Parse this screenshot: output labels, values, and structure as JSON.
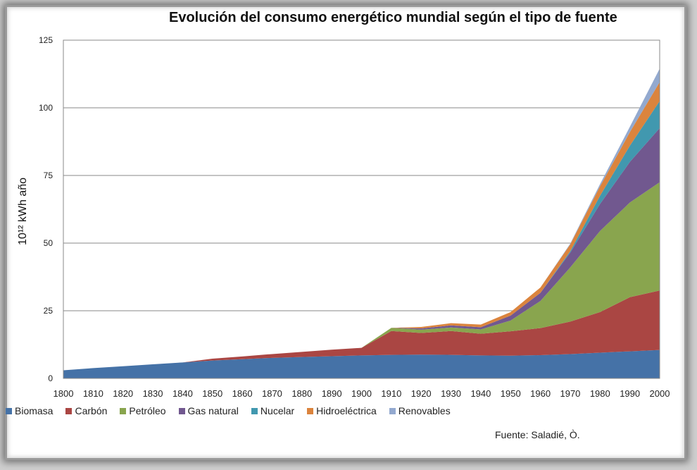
{
  "chart_data": {
    "type": "area",
    "stacked": true,
    "title": "Evolución del consumo energético mundial según el tipo de fuente",
    "ylabel": "10¹² kWh año",
    "xlabel": "",
    "ylim": [
      0,
      125
    ],
    "yticks": [
      "0",
      "25",
      "50",
      "75",
      "100",
      "125"
    ],
    "x": [
      1800,
      1810,
      1820,
      1830,
      1840,
      1850,
      1860,
      1870,
      1880,
      1890,
      1900,
      1910,
      1920,
      1930,
      1940,
      1950,
      1960,
      1970,
      1980,
      1990,
      2000
    ],
    "xticks": [
      "1800",
      "1810",
      "1820",
      "1830",
      "1840",
      "1850",
      "1860",
      "1870",
      "1880",
      "1890",
      "1900",
      "1910",
      "1920",
      "1930",
      "1940",
      "1950",
      "1960",
      "1970",
      "1980",
      "1990",
      "2000"
    ],
    "grid": "horizontal",
    "legend_position": "bottom",
    "series": [
      {
        "name": "Biomasa",
        "color": "#4572a7",
        "values": [
          3,
          3.8,
          4.5,
          5.2,
          5.9,
          6.6,
          7.1,
          7.6,
          7.9,
          8.2,
          8.5,
          8.7,
          8.8,
          8.7,
          8.5,
          8.4,
          8.6,
          9.0,
          9.5,
          10.0,
          10.5
        ]
      },
      {
        "name": "Carbón",
        "color": "#aa4643",
        "values": [
          0,
          0,
          0,
          0,
          0,
          0.7,
          1.0,
          1.4,
          1.9,
          2.4,
          2.8,
          8.8,
          8.0,
          8.8,
          8.0,
          9.0,
          10.0,
          12.0,
          15.0,
          20.0,
          22.0
        ]
      },
      {
        "name": "Petróleo",
        "color": "#89a54e",
        "values": [
          0,
          0,
          0,
          0,
          0,
          0,
          0,
          0,
          0,
          0,
          0,
          1.2,
          1.2,
          1.3,
          1.6,
          4.0,
          10.0,
          20.0,
          30.0,
          35.0,
          40.0
        ]
      },
      {
        "name": "Gas natural",
        "color": "#71588f",
        "values": [
          0,
          0,
          0,
          0,
          0,
          0,
          0,
          0,
          0,
          0,
          0,
          0,
          0.5,
          0.8,
          0.8,
          1.8,
          3.0,
          5.5,
          10.0,
          15.0,
          20.0
        ]
      },
      {
        "name": "Nucelar",
        "color": "#4198af",
        "values": [
          0,
          0,
          0,
          0,
          0,
          0,
          0,
          0,
          0,
          0,
          0,
          0,
          0,
          0,
          0,
          0,
          0,
          0.5,
          3.0,
          6.0,
          10.0
        ]
      },
      {
        "name": "Hidroeléctrica",
        "color": "#db843d",
        "values": [
          0,
          0,
          0,
          0,
          0,
          0,
          0,
          0,
          0,
          0,
          0,
          0,
          0.5,
          0.8,
          1.0,
          1.3,
          2.0,
          2.5,
          3.5,
          5.0,
          7.0
        ]
      },
      {
        "name": "Renovables",
        "color": "#93a9cf",
        "values": [
          0,
          0,
          0,
          0,
          0,
          0,
          0,
          0,
          0,
          0,
          0,
          0,
          0,
          0,
          0,
          0,
          0,
          0.3,
          0.8,
          2.0,
          5.0
        ]
      }
    ],
    "annotation": "Fuente:  Saladié, Ò."
  }
}
